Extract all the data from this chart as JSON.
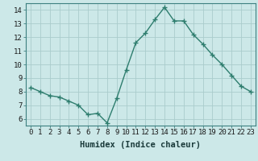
{
  "x": [
    0,
    1,
    2,
    3,
    4,
    5,
    6,
    7,
    8,
    9,
    10,
    11,
    12,
    13,
    14,
    15,
    16,
    17,
    18,
    19,
    20,
    21,
    22,
    23
  ],
  "y": [
    8.3,
    8.0,
    7.7,
    7.6,
    7.3,
    7.0,
    6.3,
    6.4,
    5.7,
    7.5,
    9.6,
    11.6,
    12.3,
    13.3,
    14.2,
    13.2,
    13.2,
    12.2,
    11.5,
    10.7,
    10.0,
    9.2,
    8.4,
    8.0
  ],
  "line_color": "#2e7d6e",
  "marker": "+",
  "marker_size": 4,
  "bg_color": "#cce8e8",
  "grid_color": "#aacccc",
  "xlabel": "Humidex (Indice chaleur)",
  "xlim": [
    -0.5,
    23.5
  ],
  "ylim": [
    5.5,
    14.5
  ],
  "xticks": [
    0,
    1,
    2,
    3,
    4,
    5,
    6,
    7,
    8,
    9,
    10,
    11,
    12,
    13,
    14,
    15,
    16,
    17,
    18,
    19,
    20,
    21,
    22,
    23
  ],
  "yticks": [
    6,
    7,
    8,
    9,
    10,
    11,
    12,
    13,
    14
  ],
  "xlabel_fontsize": 7.5,
  "tick_fontsize": 6.5,
  "line_width": 1.0
}
